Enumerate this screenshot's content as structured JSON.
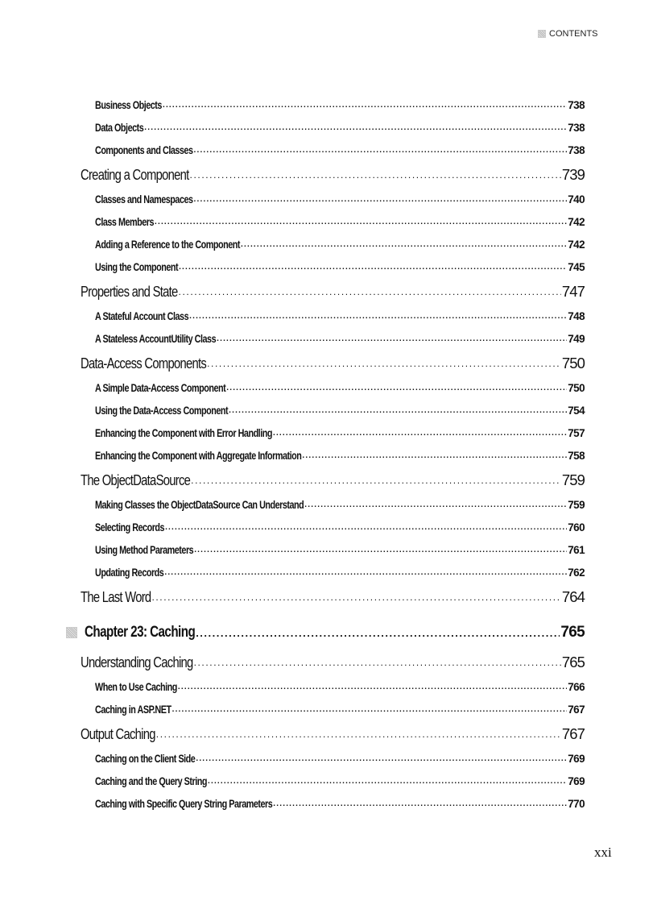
{
  "header": {
    "label": "CONTENTS",
    "icon": "gray-square-icon"
  },
  "entries": [
    {
      "level": "sub",
      "title": "Business Objects",
      "page": "738"
    },
    {
      "level": "sub",
      "title": "Data Objects",
      "page": "738"
    },
    {
      "level": "sub",
      "title": "Components and Classes",
      "page": "738"
    },
    {
      "level": "main",
      "title": "Creating a Component",
      "page": "739"
    },
    {
      "level": "sub",
      "title": "Classes and Namespaces",
      "page": "740"
    },
    {
      "level": "sub",
      "title": "Class Members",
      "page": "742"
    },
    {
      "level": "sub",
      "title": "Adding a Reference to the Component",
      "page": "742"
    },
    {
      "level": "sub",
      "title": "Using the Component",
      "page": "745"
    },
    {
      "level": "main",
      "title": "Properties and State",
      "page": "747"
    },
    {
      "level": "sub",
      "title": "A Stateful Account Class",
      "page": "748"
    },
    {
      "level": "sub",
      "title": "A Stateless AccountUtility Class",
      "page": "749"
    },
    {
      "level": "main",
      "title": "Data-Access Components",
      "page": "750"
    },
    {
      "level": "sub",
      "title": "A Simple Data-Access Component",
      "page": "750"
    },
    {
      "level": "sub",
      "title": "Using the Data-Access Component",
      "page": "754"
    },
    {
      "level": "sub",
      "title": "Enhancing the Component with Error Handling",
      "page": "757"
    },
    {
      "level": "sub",
      "title": "Enhancing the Component with Aggregate Information",
      "page": "758"
    },
    {
      "level": "main",
      "title": "The ObjectDataSource",
      "page": "759"
    },
    {
      "level": "sub",
      "title": "Making Classes the ObjectDataSource Can Understand",
      "page": "759"
    },
    {
      "level": "sub",
      "title": "Selecting Records",
      "page": "760"
    },
    {
      "level": "sub",
      "title": "Using Method Parameters",
      "page": "761"
    },
    {
      "level": "sub",
      "title": "Updating Records",
      "page": "762"
    },
    {
      "level": "main",
      "title": "The Last Word",
      "page": "764"
    },
    {
      "level": "chap",
      "title": "Chapter 23: Caching",
      "page": "765"
    },
    {
      "level": "main",
      "title": "Understanding Caching",
      "page": "765"
    },
    {
      "level": "sub",
      "title": "When to Use Caching",
      "page": "766"
    },
    {
      "level": "sub",
      "title": "Caching in ASP.NET",
      "page": "767"
    },
    {
      "level": "main",
      "title": "Output Caching",
      "page": "767"
    },
    {
      "level": "sub",
      "title": "Caching on the Client Side",
      "page": "769"
    },
    {
      "level": "sub",
      "title": "Caching and the Query String",
      "page": "769"
    },
    {
      "level": "sub",
      "title": "Caching with Specific Query String Parameters",
      "page": "770"
    }
  ],
  "page_number": "xxi"
}
